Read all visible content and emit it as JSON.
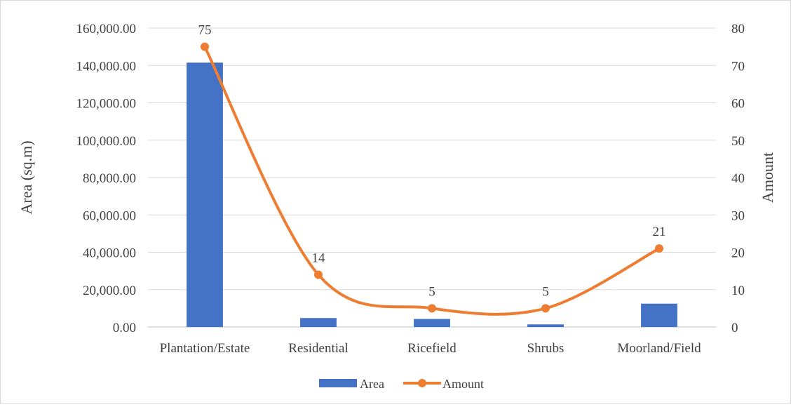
{
  "chart_data": {
    "type": "bar",
    "categories": [
      "Plantation/Estate",
      "Residential",
      "Ricefield",
      "Shrubs",
      "Moorland/Field"
    ],
    "series": [
      {
        "name": "Area",
        "type": "bar",
        "axis": "left",
        "values": [
          141500,
          4800,
          4300,
          1400,
          12500
        ]
      },
      {
        "name": "Amount",
        "type": "line",
        "axis": "right",
        "smooth": true,
        "values": [
          75,
          14,
          5,
          5,
          21
        ],
        "data_labels": [
          "75",
          "14",
          "5",
          "5",
          "21"
        ]
      }
    ],
    "ylabel": "Area (sq.m)",
    "y2label": "Amount",
    "ylim": [
      0,
      160000
    ],
    "y2lim": [
      0,
      80
    ],
    "yticks": [
      "0.00",
      "20,000.00",
      "40,000.00",
      "60,000.00",
      "80,000.00",
      "100,000.00",
      "120,000.00",
      "140,000.00",
      "160,000.00"
    ],
    "y2ticks": [
      "0",
      "10",
      "20",
      "30",
      "40",
      "50",
      "60",
      "70",
      "80"
    ],
    "grid": true,
    "legend": "bottom",
    "colors": {
      "Area": "#4472c4",
      "Amount": "#ed7d31",
      "grid": "#d9d9d9"
    }
  }
}
